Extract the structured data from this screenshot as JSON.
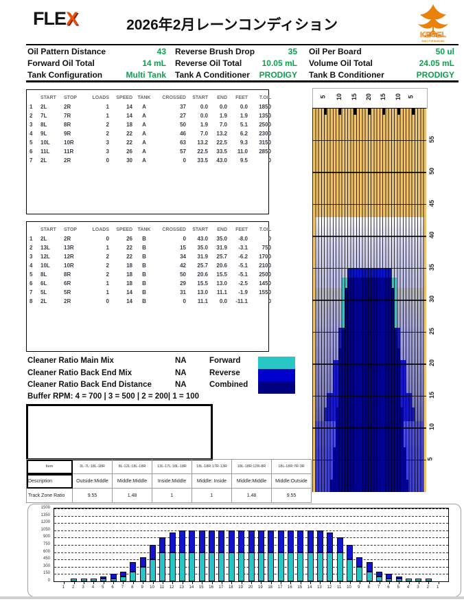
{
  "header": {
    "logo_fle": "FLE",
    "logo_x": "X",
    "title": "2026年2月レーンコンディション",
    "kegel_name": "KEGEL",
    "kegel_tagline": "BUILT FOR BOWLING"
  },
  "info": {
    "rows": [
      [
        {
          "label": "Oil Pattern Distance",
          "value": "43"
        },
        {
          "label": "Reverse Brush Drop",
          "value": "35"
        },
        {
          "label": "Oil Per Board",
          "value": "50 ul"
        }
      ],
      [
        {
          "label": "Forward Oil Total",
          "value": "14 mL"
        },
        {
          "label": "Reverse Oil Total",
          "value": "10.05 mL"
        },
        {
          "label": "Volume Oil Total",
          "value": "24.05 mL"
        }
      ],
      [
        {
          "label": "Tank Configuration",
          "value": "Multi Tank"
        },
        {
          "label": "Tank A Conditioner",
          "value": "PRODIGY"
        },
        {
          "label": "Tank B Conditioner",
          "value": "PRODIGY"
        }
      ]
    ]
  },
  "forward_table": {
    "headers": [
      "",
      "START",
      "STOP",
      "LOADS",
      "SPEED",
      "TANK",
      "CROSSED",
      "START",
      "END",
      "FEET",
      "T.OIL"
    ],
    "rows": [
      [
        "1",
        "2L",
        "2R",
        "1",
        "14",
        "A",
        "37",
        "0.0",
        "0.0",
        "0.0",
        "1850"
      ],
      [
        "2",
        "7L",
        "7R",
        "1",
        "14",
        "A",
        "27",
        "0.0",
        "1.9",
        "1.9",
        "1350"
      ],
      [
        "3",
        "8L",
        "8R",
        "2",
        "18",
        "A",
        "50",
        "1.9",
        "7.0",
        "5.1",
        "2500"
      ],
      [
        "4",
        "9L",
        "9R",
        "2",
        "22",
        "A",
        "46",
        "7.0",
        "13.2",
        "6.2",
        "2300"
      ],
      [
        "5",
        "10L",
        "10R",
        "3",
        "22",
        "A",
        "63",
        "13.2",
        "22.5",
        "9.3",
        "3150"
      ],
      [
        "6",
        "11L",
        "11R",
        "3",
        "26",
        "A",
        "57",
        "22.5",
        "33.5",
        "11.0",
        "2850"
      ],
      [
        "7",
        "2L",
        "2R",
        "0",
        "30",
        "A",
        "0",
        "33.5",
        "43.0",
        "9.5",
        "0"
      ]
    ]
  },
  "reverse_table": {
    "headers": [
      "",
      "START",
      "STOP",
      "LOADS",
      "SPEED",
      "TANK",
      "CROSSED",
      "START",
      "END",
      "FEET",
      "T.OIL"
    ],
    "rows": [
      [
        "1",
        "2L",
        "2R",
        "0",
        "26",
        "B",
        "0",
        "43.0",
        "35.0",
        "-8.0",
        "0"
      ],
      [
        "2",
        "13L",
        "13R",
        "1",
        "22",
        "B",
        "15",
        "35.0",
        "31.9",
        "-3.1",
        "750"
      ],
      [
        "3",
        "12L",
        "12R",
        "2",
        "22",
        "B",
        "34",
        "31.9",
        "25.7",
        "-6.2",
        "1700"
      ],
      [
        "4",
        "10L",
        "10R",
        "2",
        "18",
        "B",
        "42",
        "25.7",
        "20.6",
        "-5.1",
        "2100"
      ],
      [
        "5",
        "8L",
        "8R",
        "2",
        "18",
        "B",
        "50",
        "20.6",
        "15.5",
        "-5.1",
        "2500"
      ],
      [
        "6",
        "6L",
        "6R",
        "1",
        "18",
        "B",
        "29",
        "15.5",
        "13.0",
        "-2.5",
        "1450"
      ],
      [
        "7",
        "5L",
        "5R",
        "1",
        "14",
        "B",
        "31",
        "13.0",
        "11.1",
        "-1.9",
        "1550"
      ],
      [
        "8",
        "2L",
        "2R",
        "0",
        "14",
        "B",
        "0",
        "11.1",
        "0.0",
        "-11.1",
        "0"
      ]
    ]
  },
  "cleaner": {
    "rows": [
      {
        "label": "Cleaner Ratio Main Mix",
        "value": "NA"
      },
      {
        "label": "Cleaner Ratio Back End Mix",
        "value": "NA"
      },
      {
        "label": "Cleaner Ratio Back End Distance",
        "value": "NA"
      }
    ],
    "legend": [
      {
        "label": "Forward",
        "color": "#29c6c6"
      },
      {
        "label": "Reverse",
        "color": "#0000cc"
      },
      {
        "label": "Combined",
        "color": "#000080"
      }
    ],
    "buffer_rpm": "Buffer RPM: 4 = 700 | 3 = 500 | 2 = 200| 1 = 100"
  },
  "track_table": {
    "item_header": "Item",
    "col_headers": [
      "3L-7L:18L-18R",
      "8L-12L:18L-18R",
      "13L-17L:18L-18R",
      "18L-18R:17R-13R",
      "18L-18R:12R-8R",
      "18L-18R:7R-3R"
    ],
    "description_label": "Description",
    "descriptions": [
      "Outside:Middle",
      "Middle:Middle",
      "Inside:Middle",
      "Middle: Inside",
      "Middle:Middle",
      "Middle:Outside"
    ],
    "ratio_label": "Track Zone Ratio",
    "ratios": [
      "9.55",
      "1.48",
      "1",
      "1",
      "1.48",
      "9.55"
    ]
  },
  "lane": {
    "board_labels": [
      "5",
      "10",
      "15",
      "20",
      "15",
      "10",
      "5"
    ],
    "tick_boards": [
      5,
      10,
      15,
      20,
      25,
      30,
      35
    ],
    "distance_labels": [
      "55",
      "50",
      "45",
      "40",
      "35",
      "30",
      "25",
      "20",
      "15",
      "10",
      "5"
    ],
    "colors": {
      "wood": "#f0c26a",
      "cyan": "#2cc7c7",
      "rev": "#1818c8",
      "navy": "#000092",
      "block": "#0713cb"
    },
    "zones": [
      {
        "from": 60,
        "to": 43,
        "bgTop": "#f0c26a",
        "bgBottom": "#f0c26a",
        "segments": []
      },
      {
        "from": 43,
        "to": 40,
        "bgTop": "#ffffff",
        "bgBottom": "#e6e6f6",
        "segments": [],
        "inset": true
      },
      {
        "from": 40,
        "to": 35,
        "bgTop": "#dedef3",
        "bgBottom": "#c8c8ec",
        "segments": [],
        "inset": true
      },
      {
        "from": 35,
        "to": 33.5,
        "bgTop": "#c6c6eb",
        "bgBottom": "#c4c4ea",
        "segments": [
          [
            13,
            27,
            "block"
          ]
        ],
        "inset": true
      },
      {
        "from": 33.5,
        "to": 31.9,
        "bgTop": "#c2c2e9",
        "bgBottom": "#c0c0e8",
        "segments": [
          [
            11,
            12,
            "cyan"
          ],
          [
            28,
            29,
            "cyan"
          ],
          [
            13,
            27,
            "navy"
          ]
        ],
        "inset": true
      },
      {
        "from": 31.9,
        "to": 25.7,
        "bgTop": "#bababe6",
        "bgBottom": "#aaaadf",
        "segments": [
          [
            11,
            11,
            "cyan"
          ],
          [
            29,
            29,
            "cyan"
          ],
          [
            12,
            28,
            "navy"
          ]
        ],
        "inset": true
      },
      {
        "from": 25.7,
        "to": 22.5,
        "bgTop": "#a6a6dd",
        "bgBottom": "#9e9eda",
        "segments": [
          [
            10,
            10,
            "rev"
          ],
          [
            30,
            30,
            "rev"
          ],
          [
            11,
            29,
            "navy"
          ]
        ],
        "inset": true
      },
      {
        "from": 22.5,
        "to": 20.6,
        "bgTop": "#9c9cd9",
        "bgBottom": "#9898d7",
        "segments": [
          [
            10,
            30,
            "navy"
          ]
        ],
        "inset": true
      },
      {
        "from": 20.6,
        "to": 15.5,
        "bgTop": "#9494d6",
        "bgBottom": "#8484d0",
        "segments": [
          [
            8,
            9,
            "rev"
          ],
          [
            31,
            32,
            "rev"
          ],
          [
            10,
            30,
            "navy"
          ]
        ],
        "inset": true
      },
      {
        "from": 15.5,
        "to": 13.2,
        "bgTop": "#8080cf",
        "bgBottom": "#7878cc",
        "segments": [
          [
            6,
            9,
            "rev"
          ],
          [
            31,
            34,
            "rev"
          ],
          [
            10,
            30,
            "navy"
          ]
        ],
        "inset": true
      },
      {
        "from": 13.2,
        "to": 11.1,
        "bgTop": "#7474cb",
        "bgBottom": "#6c6cc8",
        "segments": [
          [
            5,
            9,
            "rev"
          ],
          [
            31,
            35,
            "rev"
          ],
          [
            9,
            31,
            "navy"
          ]
        ],
        "inset": true
      },
      {
        "from": 11.1,
        "to": 7,
        "bgTop": "#5050e2",
        "bgBottom": "#4848e4",
        "segments": [
          [
            9,
            31,
            "navy"
          ]
        ],
        "inset": true
      },
      {
        "from": 7,
        "to": 1.9,
        "bgTop": "#4444e5",
        "bgBottom": "#4040e6",
        "segments": [
          [
            8,
            32,
            "navy"
          ]
        ],
        "inset": true
      },
      {
        "from": 1.9,
        "to": 0,
        "bgTop": "#4040e6",
        "bgBottom": "#3e3ee7",
        "segments": [
          [
            7,
            33,
            "navy"
          ]
        ],
        "inset": true
      }
    ]
  },
  "chart_data": {
    "type": "bar",
    "stacked": true,
    "title": "",
    "xlabel": "",
    "ylabel": "",
    "categories": [
      "1",
      "2",
      "3",
      "4",
      "5",
      "6",
      "7",
      "8",
      "9",
      "10",
      "11",
      "12",
      "13",
      "14",
      "15",
      "16",
      "17",
      "18",
      "19",
      "20",
      "19",
      "18",
      "17",
      "16",
      "15",
      "14",
      "13",
      "12",
      "11",
      "10",
      "9",
      "8",
      "7",
      "6",
      "5",
      "4",
      "3",
      "2",
      "1"
    ],
    "series": [
      {
        "name": "Forward",
        "color": "#29c6c6",
        "values": [
          0,
          50,
          50,
          50,
          50,
          50,
          100,
          200,
          300,
          450,
          600,
          600,
          600,
          600,
          600,
          600,
          600,
          600,
          600,
          600,
          600,
          600,
          600,
          600,
          600,
          600,
          600,
          600,
          600,
          450,
          300,
          200,
          100,
          50,
          50,
          50,
          50,
          50,
          0
        ]
      },
      {
        "name": "Reverse",
        "color": "#1414cc",
        "values": [
          0,
          0,
          0,
          0,
          50,
          100,
          100,
          200,
          200,
          300,
          300,
          400,
          450,
          450,
          450,
          450,
          450,
          450,
          450,
          450,
          450,
          450,
          450,
          450,
          450,
          450,
          450,
          400,
          300,
          300,
          200,
          200,
          100,
          100,
          50,
          0,
          0,
          0,
          0
        ]
      }
    ],
    "ylim": [
      0,
      1500
    ],
    "yticks": [
      0,
      150,
      300,
      450,
      600,
      750,
      900,
      1050,
      1200,
      1350,
      1500
    ],
    "grid": true,
    "legend_position": "none"
  }
}
